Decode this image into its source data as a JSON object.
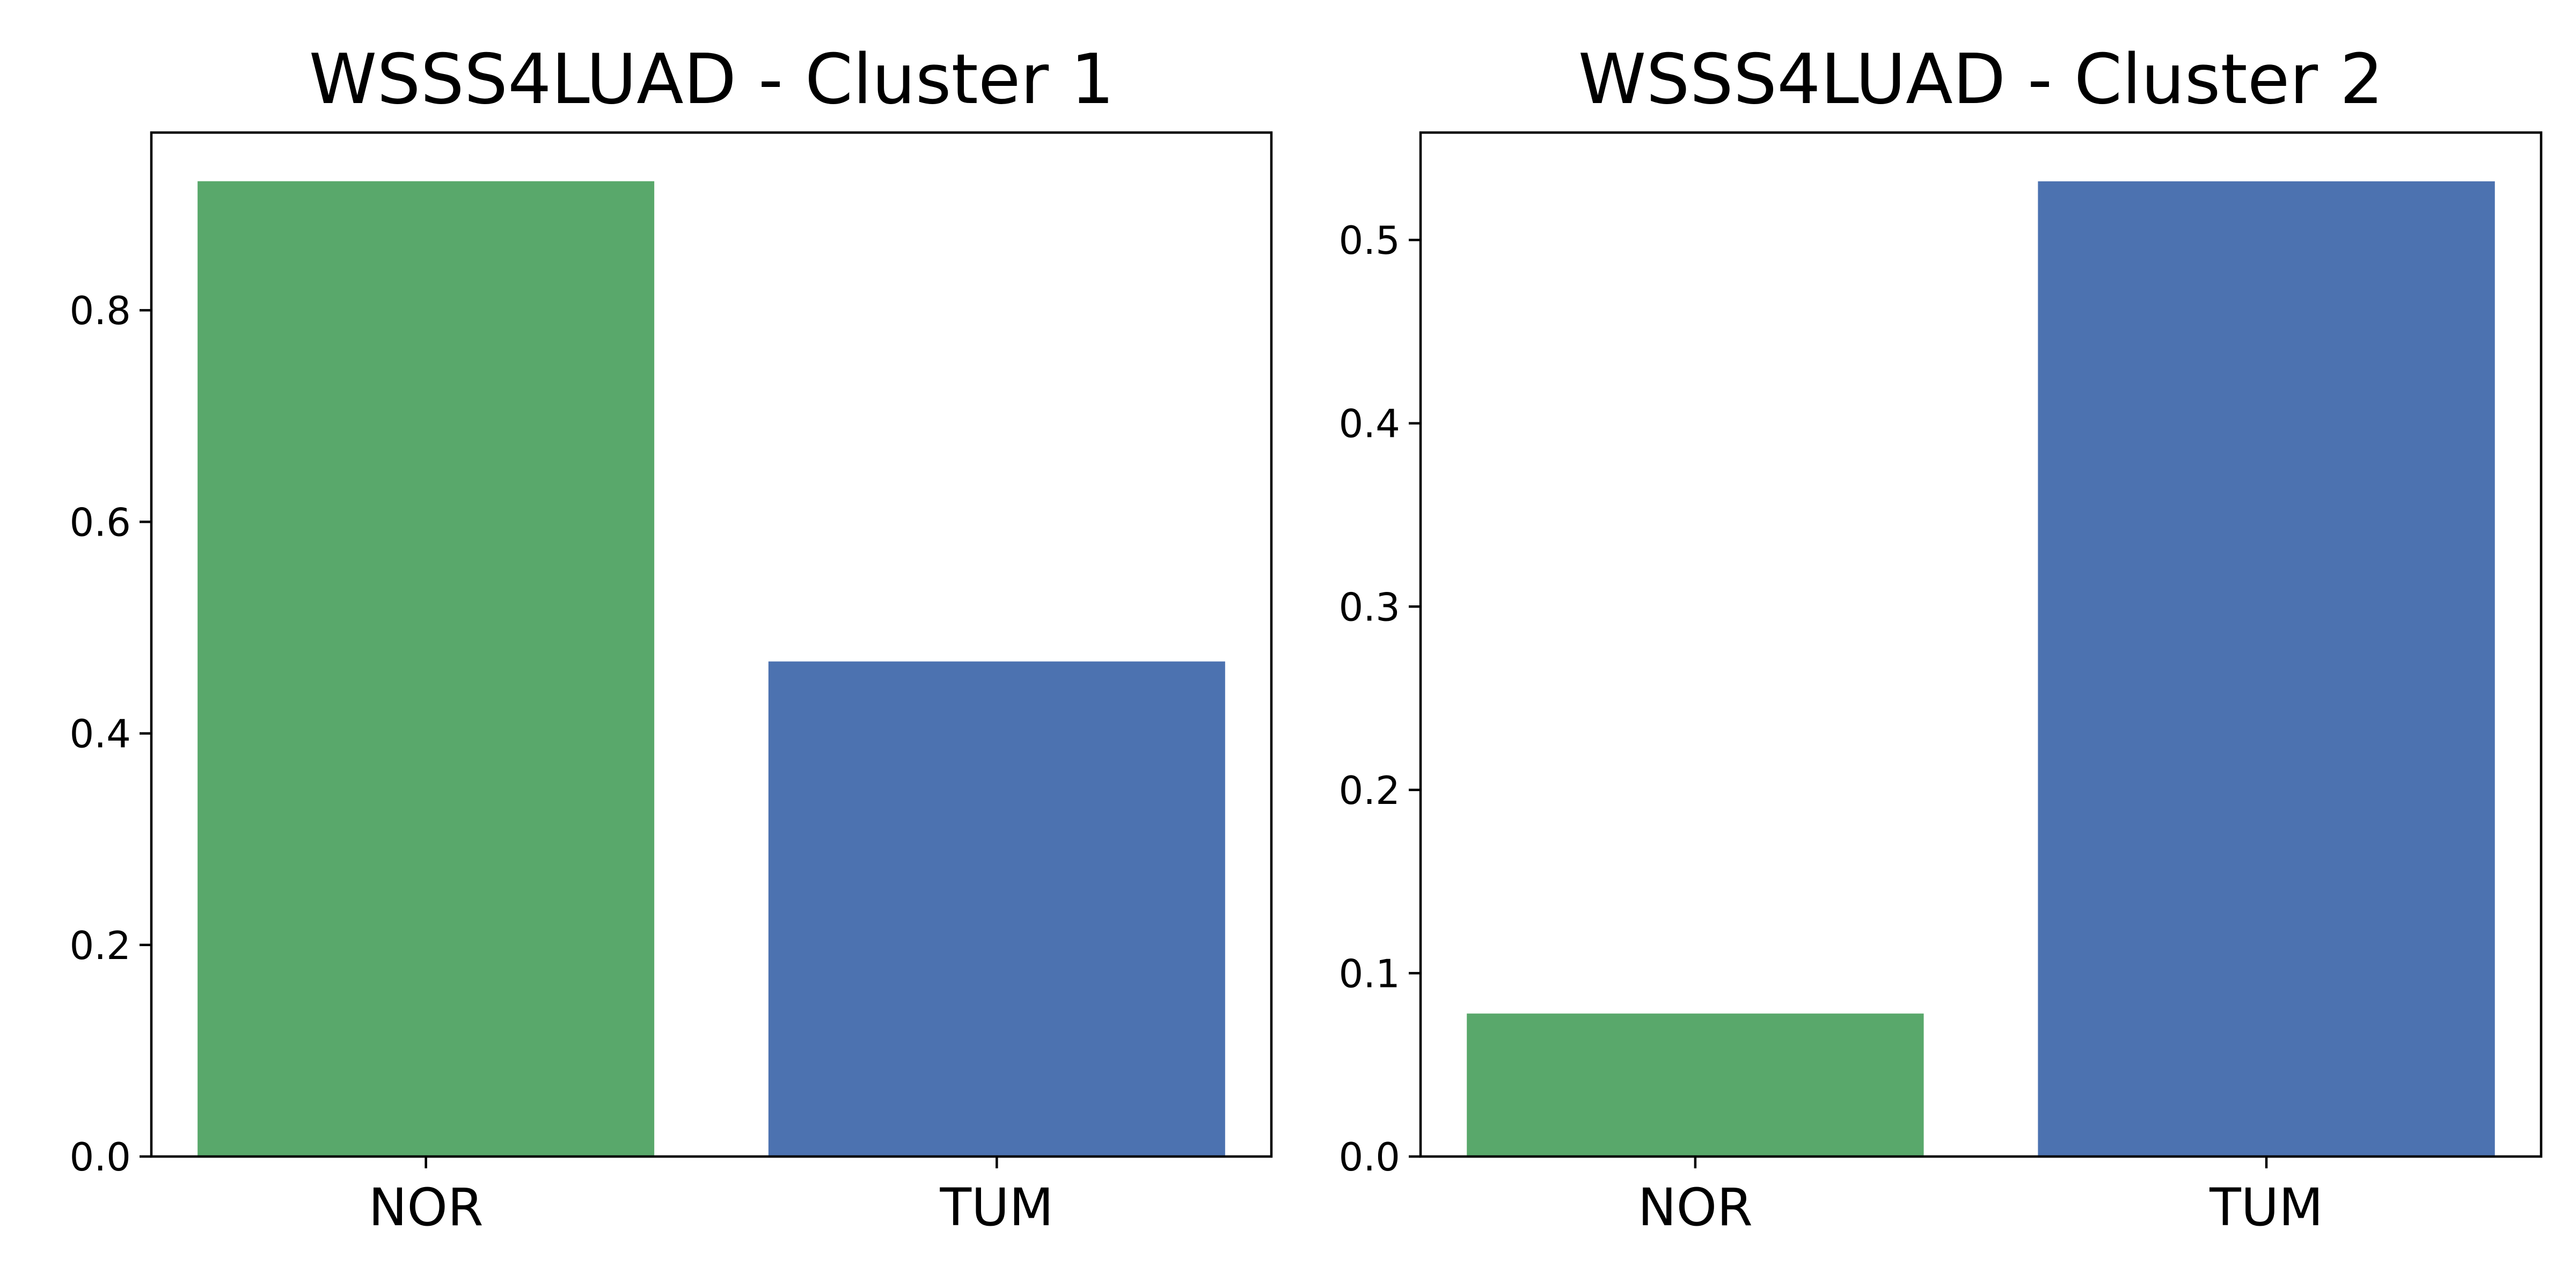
{
  "chart_data": [
    {
      "type": "bar",
      "title": "WSSS4LUAD - Cluster 1",
      "xlabel": "",
      "ylabel": "",
      "categories": [
        "NOR",
        "TUM"
      ],
      "values": [
        0.922,
        0.468
      ],
      "colors": [
        "#59a86b",
        "#4c72b0"
      ],
      "ylim": [
        0,
        0.968
      ],
      "yticks": [
        0.0,
        0.2,
        0.4,
        0.6,
        0.8
      ],
      "ytick_labels": [
        "0.0",
        "0.2",
        "0.4",
        "0.6",
        "0.8"
      ],
      "grid": false,
      "legend": false
    },
    {
      "type": "bar",
      "title": "WSSS4LUAD - Cluster 2",
      "xlabel": "",
      "ylabel": "",
      "categories": [
        "NOR",
        "TUM"
      ],
      "values": [
        0.078,
        0.532
      ],
      "colors": [
        "#59a86b",
        "#4c72b0"
      ],
      "ylim": [
        0,
        0.5586
      ],
      "yticks": [
        0.0,
        0.1,
        0.2,
        0.3,
        0.4,
        0.5
      ],
      "ytick_labels": [
        "0.0",
        "0.1",
        "0.2",
        "0.3",
        "0.4",
        "0.5"
      ],
      "grid": false,
      "legend": false
    }
  ]
}
